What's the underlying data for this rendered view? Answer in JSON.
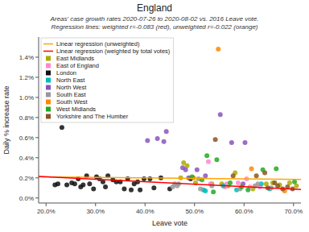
{
  "chart_data": {
    "type": "scatter",
    "title": "England",
    "subtitle": [
      "Areas' case growth rates 2020-07-26 to 2020-08-02 vs. 2016 Leave vote.",
      "Regression lines: weighted r=-0.083 (red), unweighted r=-0.022 (orange)"
    ],
    "xlabel": "Leave vote",
    "ylabel": "Daily % increase rate",
    "xlim": [
      0.185,
      0.715
    ],
    "ylim": [
      -0.0005,
      0.016
    ],
    "xticks": [
      {
        "value": 0.2,
        "label": "20.0%"
      },
      {
        "value": 0.3,
        "label": "30.0%"
      },
      {
        "value": 0.4,
        "label": "40.0%"
      },
      {
        "value": 0.5,
        "label": "50.0%"
      },
      {
        "value": 0.6,
        "label": "60.0%"
      },
      {
        "value": 0.7,
        "label": "70.0%"
      }
    ],
    "yticks": [
      {
        "value": 0.0,
        "label": "0.0%"
      },
      {
        "value": 0.002,
        "label": "0.2%"
      },
      {
        "value": 0.004,
        "label": "0.4%"
      },
      {
        "value": 0.006,
        "label": "0.6%"
      },
      {
        "value": 0.008,
        "label": "0.8%"
      },
      {
        "value": 0.01,
        "label": "1.0%"
      },
      {
        "value": 0.012,
        "label": "1.2%"
      },
      {
        "value": 0.014,
        "label": "1.4%"
      }
    ],
    "grid": false,
    "legend": "upper left",
    "series": [
      {
        "name": "Linear regression (unweighted)",
        "type": "line",
        "color": "orange",
        "x": [
          0.185,
          0.715
        ],
        "values": [
          0.0021,
          0.00185
        ]
      },
      {
        "name": "Linear regression (weighted by total votes)",
        "type": "line",
        "color": "red",
        "x": [
          0.185,
          0.715
        ],
        "values": [
          0.00215,
          0.00085
        ]
      },
      {
        "name": "East Midlands",
        "color": "#aaaa00",
        "x": [
          0.472,
          0.478,
          0.485,
          0.502,
          0.535,
          0.555,
          0.568,
          0.582,
          0.618,
          0.645,
          0.658,
          0.672,
          0.692,
          0.706
        ],
        "values": [
          0.002,
          0.0035,
          0.0032,
          0.0015,
          0.0014,
          0.0014,
          0.0012,
          0.0025,
          0.0009,
          0.0014,
          0.0015,
          0.0013,
          0.0015,
          0.0012
        ]
      },
      {
        "name": "East of England",
        "color": "#ff88cc",
        "x": [
          0.528,
          0.532,
          0.562,
          0.565,
          0.588,
          0.605,
          0.612,
          0.632
        ],
        "values": [
          0.0036,
          0.0014,
          0.0011,
          0.0014,
          0.0015,
          0.0019,
          0.0011,
          0.0011
        ]
      },
      {
        "name": "London",
        "color": "#111111",
        "x": [
          0.218,
          0.224,
          0.232,
          0.242,
          0.252,
          0.258,
          0.265,
          0.27,
          0.275,
          0.282,
          0.288,
          0.296,
          0.302,
          0.308,
          0.315,
          0.32,
          0.325,
          0.335,
          0.342,
          0.35,
          0.358,
          0.365,
          0.372,
          0.378,
          0.385,
          0.39,
          0.398,
          0.41,
          0.418,
          0.432,
          0.45,
          0.492
        ],
        "values": [
          0.0013,
          0.0014,
          0.007,
          0.0013,
          0.0015,
          0.0014,
          0.0019,
          0.0011,
          0.0013,
          0.0022,
          0.0014,
          0.0009,
          0.0021,
          0.0019,
          0.0016,
          0.0011,
          0.0022,
          0.0018,
          0.0016,
          0.0016,
          0.0009,
          0.0019,
          0.0008,
          0.0014,
          0.0016,
          0.0008,
          0.0019,
          0.0019,
          0.001,
          0.002,
          0.0009,
          0.0019
        ]
      },
      {
        "name": "North East",
        "color": "#00bbbb",
        "x": [
          0.518,
          0.522,
          0.558,
          0.585,
          0.635,
          0.652
        ],
        "values": [
          0.0008,
          0.0007,
          0.0012,
          0.0008,
          0.0014,
          0.0009
        ]
      },
      {
        "name": "North West",
        "color": "#8855bb",
        "x": [
          0.405,
          0.425,
          0.438,
          0.443,
          0.476,
          0.482,
          0.488,
          0.505,
          0.552,
          0.575,
          0.598,
          0.602,
          0.522
        ],
        "values": [
          0.0057,
          0.0059,
          0.0056,
          0.0066,
          0.003,
          0.0028,
          0.002,
          0.0028,
          0.0083,
          0.0055,
          0.0014,
          0.0055,
          0.0022
        ]
      },
      {
        "name": "South East",
        "color": "#999999",
        "x": [
          0.456,
          0.46,
          0.465,
          0.468,
          0.508,
          0.512,
          0.592,
          0.622,
          0.628,
          0.655,
          0.535
        ],
        "values": [
          0.0011,
          0.0014,
          0.0012,
          0.0014,
          0.0019,
          0.0009,
          0.0009,
          0.0012,
          0.0014,
          0.001,
          0.0012
        ]
      },
      {
        "name": "South West",
        "color": "#ff8800",
        "x": [
          0.498,
          0.548,
          0.615,
          0.682
        ],
        "values": [
          0.002,
          0.0148,
          0.0029,
          0.0007
        ]
      },
      {
        "name": "West Midlands",
        "color": "#22aa22",
        "x": [
          0.495,
          0.515,
          0.525,
          0.538,
          0.545,
          0.572,
          0.595,
          0.608,
          0.638,
          0.665,
          0.702
        ],
        "values": [
          0.0021,
          0.0018,
          0.0042,
          0.0006,
          0.0038,
          0.0015,
          0.0011,
          0.0008,
          0.0028,
          0.0029,
          0.0016
        ]
      },
      {
        "name": "Yorkshire and The Humber",
        "color": "#885522",
        "x": [
          0.542,
          0.578,
          0.625,
          0.642,
          0.648,
          0.662,
          0.668,
          0.678,
          0.688,
          0.698
        ],
        "values": [
          0.0058,
          0.0022,
          0.0022,
          0.0025,
          0.001,
          0.0015,
          0.0012,
          0.0009,
          0.0011,
          0.0009
        ]
      }
    ]
  }
}
